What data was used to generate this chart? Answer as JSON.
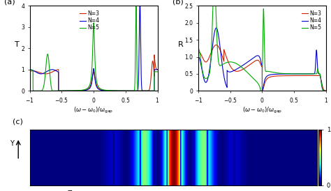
{
  "panel_a_title": "(a)",
  "panel_b_title": "(b)",
  "panel_c_title": "(c)",
  "ylabel_a": "T",
  "ylabel_b": "R",
  "xlim": [
    -1,
    1
  ],
  "ylim_a": [
    0,
    4
  ],
  "ylim_b": [
    0,
    2.5
  ],
  "yticks_a": [
    0,
    1,
    2,
    3,
    4
  ],
  "yticks_b": [
    0,
    0.5,
    1.0,
    1.5,
    2.0,
    2.5
  ],
  "xticks": [
    -1,
    -0.5,
    0,
    0.5,
    1
  ],
  "legend_labels": [
    "N=3",
    "N=4",
    "N=5"
  ],
  "colors": [
    "#cc2200",
    "#0000cc",
    "#00aa00"
  ],
  "background_color": "#ffffff"
}
